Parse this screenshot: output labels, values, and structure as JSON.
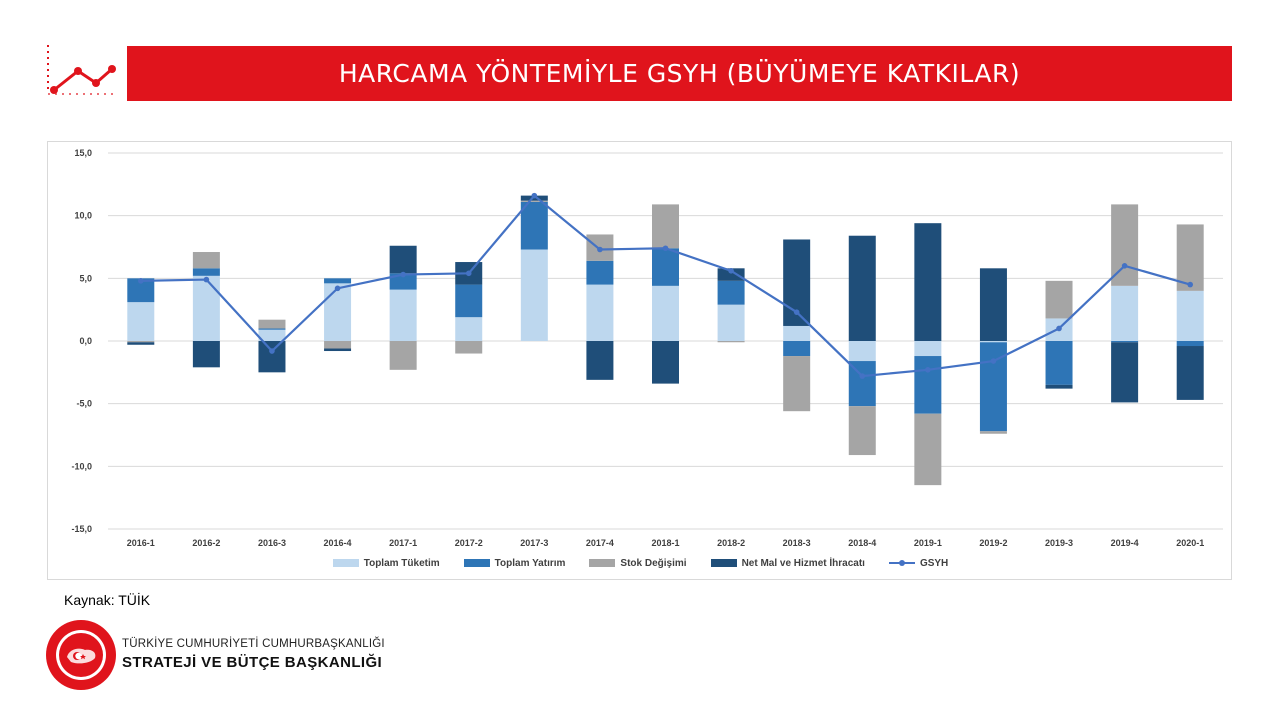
{
  "header": {
    "title": "HARCAMA YÖNTEMİYLE GSYH (BÜYÜMEYE KATKILAR)",
    "accent_color": "#e0141c"
  },
  "chart_data": {
    "type": "bar",
    "stacked": true,
    "categories": [
      "2016-1",
      "2016-2",
      "2016-3",
      "2016-4",
      "2017-1",
      "2017-2",
      "2017-3",
      "2017-4",
      "2018-1",
      "2018-2",
      "2018-3",
      "2018-4",
      "2019-1",
      "2019-2",
      "2019-3",
      "2019-4",
      "2020-1"
    ],
    "series": [
      {
        "name": "Toplam Tüketim",
        "kind": "bar",
        "color": "#bdd7ee",
        "values": [
          3.1,
          5.2,
          0.9,
          4.6,
          4.1,
          1.9,
          7.3,
          4.5,
          4.4,
          2.9,
          1.2,
          -1.6,
          -1.2,
          -0.1,
          1.8,
          4.4,
          4.0
        ]
      },
      {
        "name": "Toplam Yatırım",
        "kind": "bar",
        "color": "#2e75b6",
        "values": [
          1.9,
          0.6,
          0.1,
          0.4,
          1.3,
          2.6,
          3.8,
          1.9,
          3.0,
          1.9,
          -1.2,
          -3.6,
          -4.6,
          -7.1,
          -3.5,
          -0.1,
          -0.4
        ]
      },
      {
        "name": "Stok Değişimi",
        "kind": "bar",
        "color": "#a5a5a5",
        "values": [
          -0.1,
          1.3,
          0.7,
          -0.6,
          -2.3,
          -1.0,
          0.1,
          2.1,
          3.5,
          -0.1,
          -4.4,
          -3.9,
          -5.7,
          -0.2,
          3.0,
          6.5,
          5.3
        ]
      },
      {
        "name": "Net Mal ve Hizmet İhracatı",
        "kind": "bar",
        "color": "#1f4e79",
        "values": [
          -0.2,
          -2.1,
          -2.5,
          -0.2,
          2.2,
          1.8,
          0.4,
          -3.1,
          -3.4,
          1.0,
          6.9,
          8.4,
          9.4,
          5.8,
          -0.3,
          -4.8,
          -4.3
        ]
      },
      {
        "name": "GSYH",
        "kind": "line",
        "color": "#4472c4",
        "values": [
          4.8,
          4.9,
          -0.8,
          4.2,
          5.3,
          5.4,
          11.6,
          7.3,
          7.4,
          5.6,
          2.3,
          -2.8,
          -2.3,
          -1.6,
          1.0,
          6.0,
          4.5
        ]
      }
    ],
    "ylim": [
      -15,
      15
    ],
    "y_ticks": [
      "15,0",
      "10,0",
      "5,0",
      "0,0",
      "-5,0",
      "-10,0",
      "-15,0"
    ],
    "y_tick_values": [
      15,
      10,
      5,
      0,
      -5,
      -10,
      -15
    ],
    "grid": true,
    "legend_position": "bottom",
    "title": "",
    "xlabel": "",
    "ylabel": ""
  },
  "footer": {
    "source": "Kaynak: TÜİK",
    "org_line1": "TÜRKİYE CUMHURİYETİ CUMHURBAŞKANLIĞI",
    "org_line2": "STRATEJİ VE BÜTÇE BAŞKANLIĞI",
    "seal_text": "T.C. CUMHURBAŞKANLIĞI STRATEJİ VE BÜTÇE BAŞKANLIĞI"
  }
}
